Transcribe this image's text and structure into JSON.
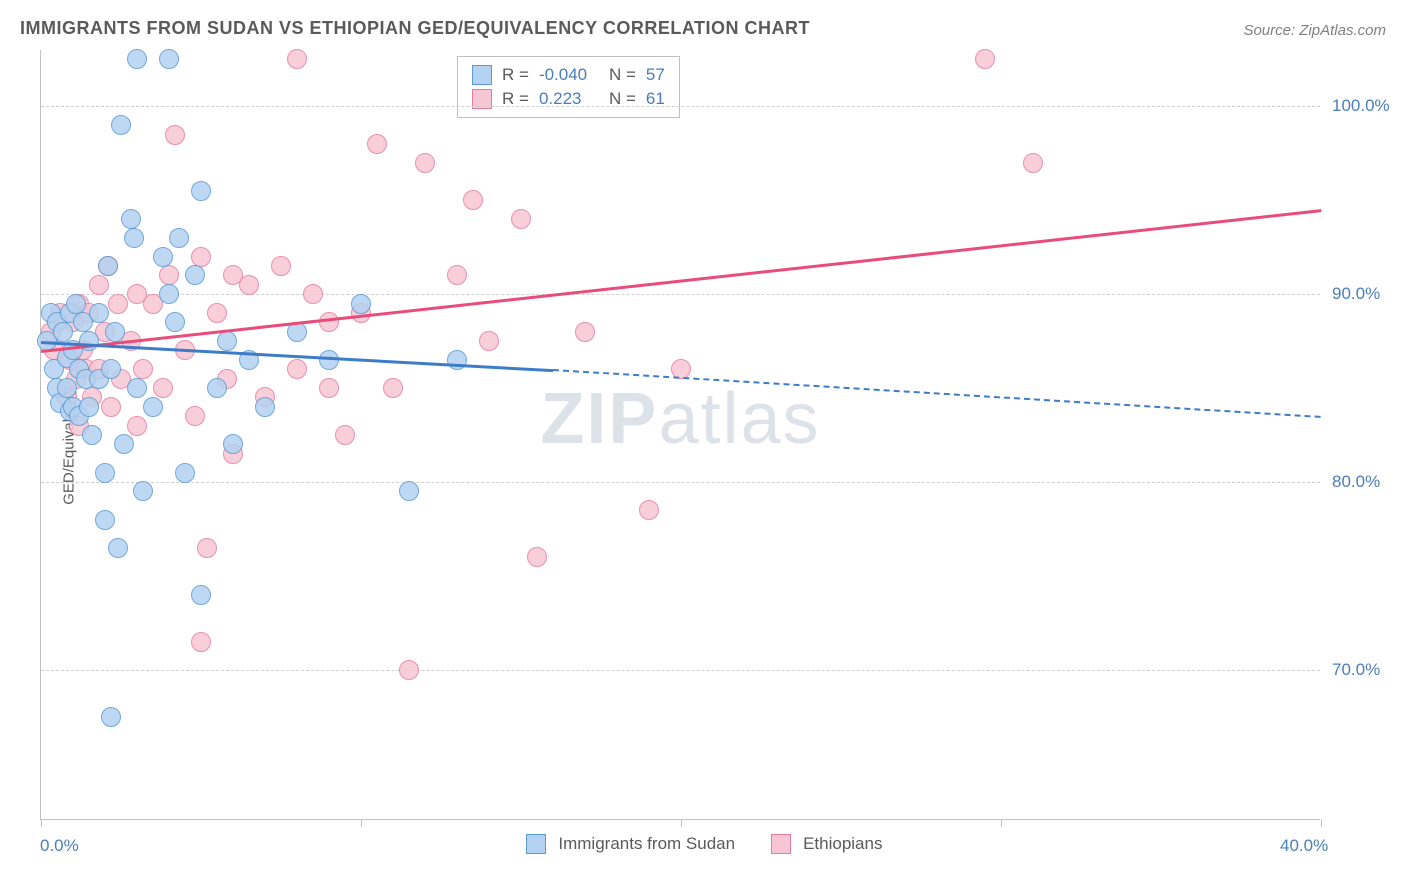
{
  "title": "IMMIGRANTS FROM SUDAN VS ETHIOPIAN GED/EQUIVALENCY CORRELATION CHART",
  "source": "Source: ZipAtlas.com",
  "y_axis_label": "GED/Equivalency",
  "watermark_bold": "ZIP",
  "watermark_rest": "atlas",
  "colors": {
    "series_a_fill": "#b3d1f0",
    "series_a_stroke": "#5a9bd5",
    "series_b_fill": "#f7c6d4",
    "series_b_stroke": "#e77ca0",
    "trend_a": "#3d7cc9",
    "trend_b": "#e94b7b",
    "tick_text": "#4a7ebb",
    "grid": "#d0d0d0"
  },
  "plot": {
    "x_min": 0.0,
    "x_max": 40.0,
    "y_min": 62.0,
    "y_max": 103.0,
    "y_ticks": [
      70.0,
      80.0,
      90.0,
      100.0
    ],
    "y_tick_labels": [
      "70.0%",
      "80.0%",
      "90.0%",
      "100.0%"
    ],
    "x_ticks": [
      0.0,
      10.0,
      20.0,
      30.0,
      40.0
    ],
    "x_tick_labels": [
      "0.0%",
      "",
      "",
      "",
      "40.0%"
    ]
  },
  "legend_top": {
    "rows": [
      {
        "swatch": "a",
        "r_label": "R =",
        "r_value": "-0.040",
        "n_label": "N =",
        "n_value": "57"
      },
      {
        "swatch": "b",
        "r_label": "R =",
        "r_value": "0.223",
        "n_label": "N =",
        "n_value": "61"
      }
    ]
  },
  "legend_bottom": {
    "items": [
      {
        "swatch": "a",
        "label": "Immigrants from Sudan"
      },
      {
        "swatch": "b",
        "label": "Ethiopians"
      }
    ]
  },
  "trend_lines": {
    "a_solid": {
      "x1": 0.0,
      "y1": 87.5,
      "x2": 16.0,
      "y2": 86.0
    },
    "a_dashed": {
      "x1": 16.0,
      "y1": 86.0,
      "x2": 40.0,
      "y2": 83.5
    },
    "b_solid": {
      "x1": 0.0,
      "y1": 87.0,
      "x2": 40.0,
      "y2": 94.5
    }
  },
  "series_a_points": [
    [
      0.2,
      87.5
    ],
    [
      0.3,
      89.0
    ],
    [
      0.4,
      86.0
    ],
    [
      0.5,
      85.0
    ],
    [
      0.5,
      88.5
    ],
    [
      0.6,
      84.2
    ],
    [
      0.7,
      88.0
    ],
    [
      0.8,
      86.6
    ],
    [
      0.8,
      85.0
    ],
    [
      0.9,
      89.0
    ],
    [
      0.9,
      83.8
    ],
    [
      1.0,
      87.0
    ],
    [
      1.0,
      84.0
    ],
    [
      1.1,
      89.5
    ],
    [
      1.2,
      83.5
    ],
    [
      1.2,
      86.0
    ],
    [
      1.3,
      88.5
    ],
    [
      1.4,
      85.5
    ],
    [
      1.5,
      84.0
    ],
    [
      1.5,
      87.5
    ],
    [
      1.6,
      82.5
    ],
    [
      1.8,
      85.5
    ],
    [
      1.8,
      89.0
    ],
    [
      2.0,
      80.5
    ],
    [
      2.0,
      78.0
    ],
    [
      2.1,
      91.5
    ],
    [
      2.2,
      86.0
    ],
    [
      2.2,
      67.5
    ],
    [
      2.3,
      88.0
    ],
    [
      2.4,
      76.5
    ],
    [
      2.5,
      99.0
    ],
    [
      2.6,
      82.0
    ],
    [
      2.8,
      94.0
    ],
    [
      2.9,
      93.0
    ],
    [
      3.0,
      85.0
    ],
    [
      3.0,
      102.5
    ],
    [
      3.2,
      79.5
    ],
    [
      3.5,
      84.0
    ],
    [
      3.8,
      92.0
    ],
    [
      4.0,
      90.0
    ],
    [
      4.0,
      102.5
    ],
    [
      4.2,
      88.5
    ],
    [
      4.3,
      93.0
    ],
    [
      4.5,
      80.5
    ],
    [
      4.8,
      91.0
    ],
    [
      5.0,
      74.0
    ],
    [
      5.0,
      95.5
    ],
    [
      5.5,
      85.0
    ],
    [
      5.8,
      87.5
    ],
    [
      6.0,
      82.0
    ],
    [
      6.5,
      86.5
    ],
    [
      7.0,
      84.0
    ],
    [
      8.0,
      88.0
    ],
    [
      9.0,
      86.5
    ],
    [
      10.0,
      89.5
    ],
    [
      11.5,
      79.5
    ],
    [
      13.0,
      86.5
    ]
  ],
  "series_b_points": [
    [
      0.3,
      88.0
    ],
    [
      0.4,
      87.0
    ],
    [
      0.6,
      89.0
    ],
    [
      0.8,
      84.5
    ],
    [
      0.9,
      86.5
    ],
    [
      1.0,
      88.5
    ],
    [
      1.1,
      85.5
    ],
    [
      1.2,
      89.5
    ],
    [
      1.2,
      83.0
    ],
    [
      1.3,
      87.0
    ],
    [
      1.4,
      86.0
    ],
    [
      1.5,
      89.0
    ],
    [
      1.6,
      84.5
    ],
    [
      1.8,
      90.5
    ],
    [
      1.8,
      86.0
    ],
    [
      2.0,
      88.0
    ],
    [
      2.1,
      91.5
    ],
    [
      2.2,
      84.0
    ],
    [
      2.4,
      89.5
    ],
    [
      2.5,
      85.5
    ],
    [
      2.8,
      87.5
    ],
    [
      3.0,
      83.0
    ],
    [
      3.0,
      90.0
    ],
    [
      3.2,
      86.0
    ],
    [
      3.5,
      89.5
    ],
    [
      3.8,
      85.0
    ],
    [
      4.0,
      91.0
    ],
    [
      4.2,
      98.5
    ],
    [
      4.5,
      87.0
    ],
    [
      4.8,
      83.5
    ],
    [
      5.0,
      92.0
    ],
    [
      5.0,
      71.5
    ],
    [
      5.2,
      76.5
    ],
    [
      5.5,
      89.0
    ],
    [
      5.8,
      85.5
    ],
    [
      6.0,
      91.0
    ],
    [
      6.0,
      81.5
    ],
    [
      6.5,
      90.5
    ],
    [
      7.0,
      84.5
    ],
    [
      7.5,
      91.5
    ],
    [
      8.0,
      86.0
    ],
    [
      8.0,
      102.5
    ],
    [
      8.5,
      90.0
    ],
    [
      9.0,
      85.0
    ],
    [
      9.0,
      88.5
    ],
    [
      9.5,
      82.5
    ],
    [
      10.0,
      89.0
    ],
    [
      10.5,
      98.0
    ],
    [
      11.0,
      85.0
    ],
    [
      11.5,
      70.0
    ],
    [
      12.0,
      97.0
    ],
    [
      13.0,
      91.0
    ],
    [
      13.5,
      95.0
    ],
    [
      14.0,
      87.5
    ],
    [
      15.0,
      94.0
    ],
    [
      15.5,
      76.0
    ],
    [
      17.0,
      88.0
    ],
    [
      19.0,
      78.5
    ],
    [
      20.0,
      86.0
    ],
    [
      29.5,
      102.5
    ],
    [
      31.0,
      97.0
    ]
  ]
}
